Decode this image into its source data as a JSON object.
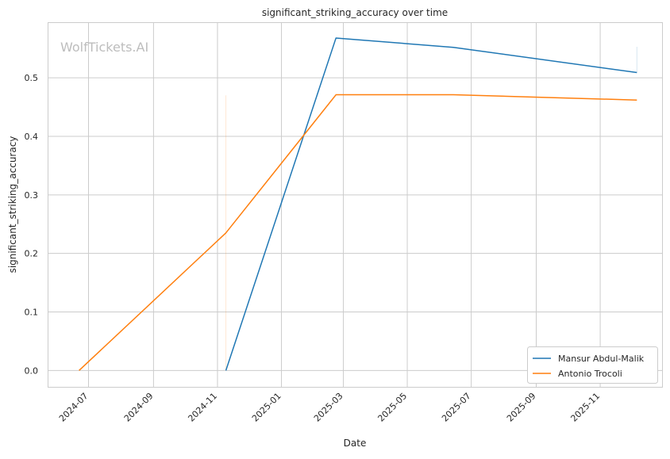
{
  "chart_data": {
    "type": "line",
    "title": "significant_striking_accuracy over time",
    "xlabel": "Date",
    "ylabel": "significant_striking_accuracy",
    "watermark": "WolfTickets.AI",
    "xlim": [
      "2024-05-23",
      "2025-12-30"
    ],
    "ylim": [
      -0.028,
      0.595
    ],
    "grid": true,
    "legend_position": "lower-right",
    "x_tick_labels": [
      "2024-07",
      "2024-09",
      "2024-11",
      "2025-01",
      "2025-03",
      "2025-05",
      "2025-07",
      "2025-09",
      "2025-11"
    ],
    "y_tick_labels": [
      "0.0",
      "0.1",
      "0.2",
      "0.3",
      "0.4",
      "0.5"
    ],
    "series": [
      {
        "name": "Mansur Abdul-Malik",
        "color": "#1f77b4",
        "points": [
          {
            "x": "2024-11-09",
            "y": 0.0
          },
          {
            "x": "2025-02-22",
            "y": 0.568
          },
          {
            "x": "2025-06-14",
            "y": 0.552
          },
          {
            "x": "2025-12-06",
            "y": 0.509
          }
        ]
      },
      {
        "name": "Antonio Trocoli",
        "color": "#ff7f0e",
        "points": [
          {
            "x": "2024-06-22",
            "y": 0.0
          },
          {
            "x": "2024-11-09",
            "y": 0.235
          },
          {
            "x": "2025-02-22",
            "y": 0.471
          },
          {
            "x": "2025-06-14",
            "y": 0.471
          },
          {
            "x": "2025-12-06",
            "y": 0.462
          }
        ]
      }
    ]
  }
}
